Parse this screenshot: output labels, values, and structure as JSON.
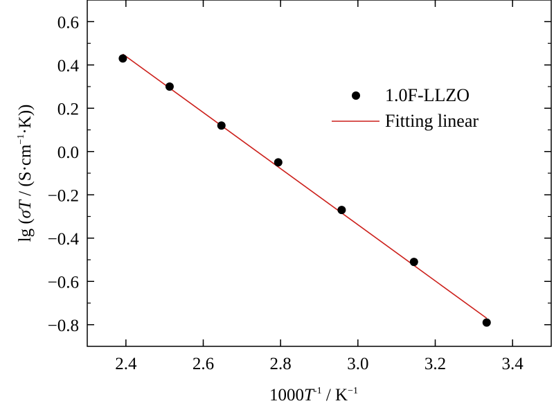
{
  "chart_data": {
    "type": "scatter",
    "xlabel": {
      "prefix": "1000",
      "var": "T",
      "sup1": "-1",
      "mid": " / K",
      "sup2": "−1"
    },
    "ylabel": {
      "p1": "lg (",
      "sigma": "σ",
      "T": "T",
      "p2": " / (S·cm",
      "sup": "−1",
      "p3": "·K))"
    },
    "xlim": [
      2.3,
      3.5
    ],
    "ylim": [
      -0.9,
      0.7
    ],
    "x_ticks": [
      2.4,
      2.6,
      2.8,
      3.0,
      3.2,
      3.4
    ],
    "x_tick_labels": [
      "2.4",
      "2.6",
      "2.8",
      "3.0",
      "3.2",
      "3.4"
    ],
    "y_ticks": [
      0.6,
      0.4,
      0.2,
      0.0,
      -0.2,
      -0.4,
      -0.6,
      -0.8
    ],
    "y_tick_labels": [
      "0.6",
      "0.4",
      "0.2",
      "0.0",
      "−0.2",
      "−0.4",
      "−0.6",
      "−0.8"
    ],
    "series": [
      {
        "name": "1.0F-LLZO",
        "kind": "scatter",
        "color": "#000000",
        "x": [
          2.392,
          2.513,
          2.647,
          2.794,
          2.958,
          3.145,
          3.333
        ],
        "y": [
          0.43,
          0.3,
          0.12,
          -0.05,
          -0.27,
          -0.51,
          -0.79
        ]
      },
      {
        "name": "Fitting linear",
        "kind": "line",
        "color": "#cc1f1a",
        "x": [
          2.392,
          3.333
        ],
        "y": [
          0.45,
          -0.77
        ]
      }
    ],
    "legend_position": "top-right",
    "grid": false
  }
}
